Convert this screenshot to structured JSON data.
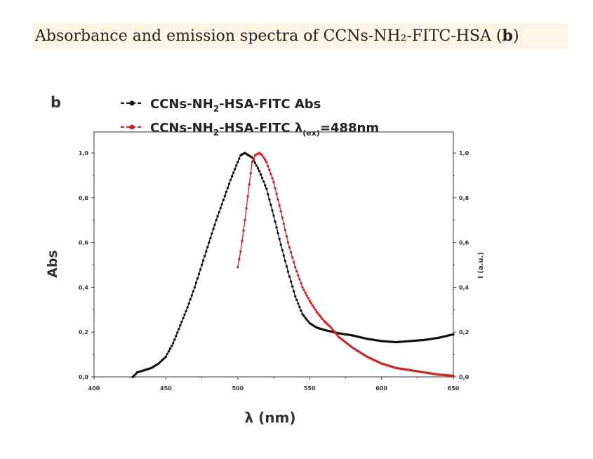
{
  "caption": {
    "prefix": "Absorbance and emission spectra of CCNs-NH₂-FITC-HSA (",
    "bold": "b",
    "suffix": ")"
  },
  "chart_data": {
    "type": "line",
    "panel_label": "b",
    "xlabel": "λ (nm)",
    "ylabel_left": "Abs",
    "ylabel_right": "I (a.u.)",
    "xlim": [
      400,
      650
    ],
    "ylim": [
      0,
      1.0
    ],
    "x_ticks": [
      "400",
      "450",
      "500",
      "550",
      "600",
      "650"
    ],
    "y_ticks": [
      "0,0",
      "0,2",
      "0,4",
      "0,6",
      "0,8",
      "1,0"
    ],
    "series": [
      {
        "name": "CCNs-NH₂-HSA-FITC Abs",
        "legend": {
          "prefix": "CCNs-NH",
          "sub": "2",
          "suffix": "-HSA-FITC Abs"
        },
        "color": "#111111",
        "x": [
          427,
          430,
          435,
          440,
          445,
          450,
          455,
          460,
          465,
          470,
          475,
          480,
          485,
          490,
          495,
          500,
          502,
          505,
          510,
          515,
          520,
          525,
          530,
          535,
          540,
          545,
          550,
          555,
          560,
          570,
          580,
          590,
          600,
          610,
          620,
          630,
          640,
          650
        ],
        "y": [
          0.0,
          0.02,
          0.03,
          0.04,
          0.06,
          0.09,
          0.15,
          0.23,
          0.31,
          0.4,
          0.5,
          0.6,
          0.7,
          0.79,
          0.88,
          0.96,
          0.99,
          1.0,
          0.98,
          0.92,
          0.84,
          0.72,
          0.59,
          0.47,
          0.36,
          0.28,
          0.24,
          0.22,
          0.21,
          0.195,
          0.185,
          0.17,
          0.16,
          0.155,
          0.16,
          0.165,
          0.175,
          0.19
        ]
      },
      {
        "name": "CCNs-NH₂-HSA-FITC λ(ex)=488nm",
        "legend": {
          "prefix": "CCNs-NH",
          "sub": "2",
          "middle": "-HSA-FITC λ",
          "sub2": "(ex)",
          "suffix": "=488nm"
        },
        "color": "#d42020",
        "x": [
          500,
          502,
          505,
          508,
          510,
          512,
          515,
          517,
          520,
          525,
          530,
          535,
          540,
          545,
          550,
          555,
          560,
          565,
          570,
          580,
          590,
          600,
          610,
          620,
          630,
          640,
          650
        ],
        "y": [
          0.49,
          0.56,
          0.7,
          0.86,
          0.96,
          0.99,
          1.0,
          0.99,
          0.96,
          0.87,
          0.74,
          0.6,
          0.49,
          0.4,
          0.34,
          0.29,
          0.25,
          0.22,
          0.18,
          0.13,
          0.09,
          0.06,
          0.04,
          0.03,
          0.02,
          0.01,
          0.005
        ]
      }
    ]
  }
}
